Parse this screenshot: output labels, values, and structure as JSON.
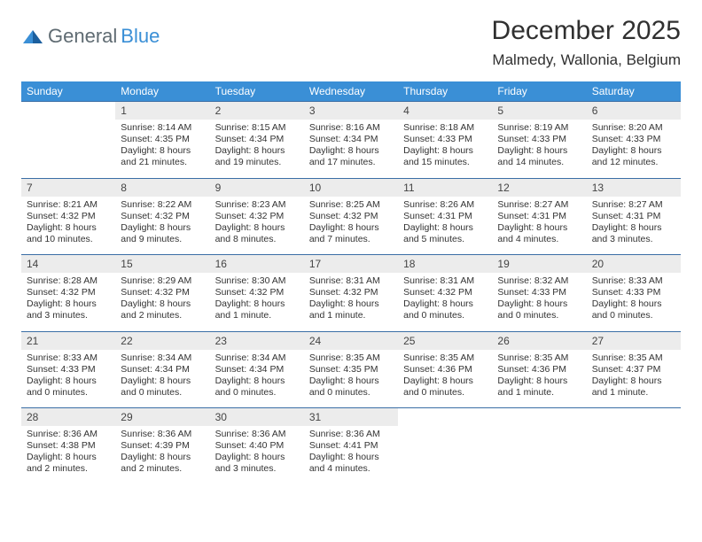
{
  "logo": {
    "word1": "General",
    "word2": "Blue"
  },
  "title": "December 2025",
  "location": "Malmedy, Wallonia, Belgium",
  "colors": {
    "header_bg": "#3a8fd6",
    "daynum_bg": "#ececec",
    "row_border": "#3a6ea5",
    "text": "#333333"
  },
  "weekdays": [
    "Sunday",
    "Monday",
    "Tuesday",
    "Wednesday",
    "Thursday",
    "Friday",
    "Saturday"
  ],
  "weeks": [
    {
      "nums": [
        "",
        "1",
        "2",
        "3",
        "4",
        "5",
        "6"
      ],
      "cells": [
        null,
        {
          "sunrise": "Sunrise: 8:14 AM",
          "sunset": "Sunset: 4:35 PM",
          "d1": "Daylight: 8 hours",
          "d2": "and 21 minutes."
        },
        {
          "sunrise": "Sunrise: 8:15 AM",
          "sunset": "Sunset: 4:34 PM",
          "d1": "Daylight: 8 hours",
          "d2": "and 19 minutes."
        },
        {
          "sunrise": "Sunrise: 8:16 AM",
          "sunset": "Sunset: 4:34 PM",
          "d1": "Daylight: 8 hours",
          "d2": "and 17 minutes."
        },
        {
          "sunrise": "Sunrise: 8:18 AM",
          "sunset": "Sunset: 4:33 PM",
          "d1": "Daylight: 8 hours",
          "d2": "and 15 minutes."
        },
        {
          "sunrise": "Sunrise: 8:19 AM",
          "sunset": "Sunset: 4:33 PM",
          "d1": "Daylight: 8 hours",
          "d2": "and 14 minutes."
        },
        {
          "sunrise": "Sunrise: 8:20 AM",
          "sunset": "Sunset: 4:33 PM",
          "d1": "Daylight: 8 hours",
          "d2": "and 12 minutes."
        }
      ]
    },
    {
      "nums": [
        "7",
        "8",
        "9",
        "10",
        "11",
        "12",
        "13"
      ],
      "cells": [
        {
          "sunrise": "Sunrise: 8:21 AM",
          "sunset": "Sunset: 4:32 PM",
          "d1": "Daylight: 8 hours",
          "d2": "and 10 minutes."
        },
        {
          "sunrise": "Sunrise: 8:22 AM",
          "sunset": "Sunset: 4:32 PM",
          "d1": "Daylight: 8 hours",
          "d2": "and 9 minutes."
        },
        {
          "sunrise": "Sunrise: 8:23 AM",
          "sunset": "Sunset: 4:32 PM",
          "d1": "Daylight: 8 hours",
          "d2": "and 8 minutes."
        },
        {
          "sunrise": "Sunrise: 8:25 AM",
          "sunset": "Sunset: 4:32 PM",
          "d1": "Daylight: 8 hours",
          "d2": "and 7 minutes."
        },
        {
          "sunrise": "Sunrise: 8:26 AM",
          "sunset": "Sunset: 4:31 PM",
          "d1": "Daylight: 8 hours",
          "d2": "and 5 minutes."
        },
        {
          "sunrise": "Sunrise: 8:27 AM",
          "sunset": "Sunset: 4:31 PM",
          "d1": "Daylight: 8 hours",
          "d2": "and 4 minutes."
        },
        {
          "sunrise": "Sunrise: 8:27 AM",
          "sunset": "Sunset: 4:31 PM",
          "d1": "Daylight: 8 hours",
          "d2": "and 3 minutes."
        }
      ]
    },
    {
      "nums": [
        "14",
        "15",
        "16",
        "17",
        "18",
        "19",
        "20"
      ],
      "cells": [
        {
          "sunrise": "Sunrise: 8:28 AM",
          "sunset": "Sunset: 4:32 PM",
          "d1": "Daylight: 8 hours",
          "d2": "and 3 minutes."
        },
        {
          "sunrise": "Sunrise: 8:29 AM",
          "sunset": "Sunset: 4:32 PM",
          "d1": "Daylight: 8 hours",
          "d2": "and 2 minutes."
        },
        {
          "sunrise": "Sunrise: 8:30 AM",
          "sunset": "Sunset: 4:32 PM",
          "d1": "Daylight: 8 hours",
          "d2": "and 1 minute."
        },
        {
          "sunrise": "Sunrise: 8:31 AM",
          "sunset": "Sunset: 4:32 PM",
          "d1": "Daylight: 8 hours",
          "d2": "and 1 minute."
        },
        {
          "sunrise": "Sunrise: 8:31 AM",
          "sunset": "Sunset: 4:32 PM",
          "d1": "Daylight: 8 hours",
          "d2": "and 0 minutes."
        },
        {
          "sunrise": "Sunrise: 8:32 AM",
          "sunset": "Sunset: 4:33 PM",
          "d1": "Daylight: 8 hours",
          "d2": "and 0 minutes."
        },
        {
          "sunrise": "Sunrise: 8:33 AM",
          "sunset": "Sunset: 4:33 PM",
          "d1": "Daylight: 8 hours",
          "d2": "and 0 minutes."
        }
      ]
    },
    {
      "nums": [
        "21",
        "22",
        "23",
        "24",
        "25",
        "26",
        "27"
      ],
      "cells": [
        {
          "sunrise": "Sunrise: 8:33 AM",
          "sunset": "Sunset: 4:33 PM",
          "d1": "Daylight: 8 hours",
          "d2": "and 0 minutes."
        },
        {
          "sunrise": "Sunrise: 8:34 AM",
          "sunset": "Sunset: 4:34 PM",
          "d1": "Daylight: 8 hours",
          "d2": "and 0 minutes."
        },
        {
          "sunrise": "Sunrise: 8:34 AM",
          "sunset": "Sunset: 4:34 PM",
          "d1": "Daylight: 8 hours",
          "d2": "and 0 minutes."
        },
        {
          "sunrise": "Sunrise: 8:35 AM",
          "sunset": "Sunset: 4:35 PM",
          "d1": "Daylight: 8 hours",
          "d2": "and 0 minutes."
        },
        {
          "sunrise": "Sunrise: 8:35 AM",
          "sunset": "Sunset: 4:36 PM",
          "d1": "Daylight: 8 hours",
          "d2": "and 0 minutes."
        },
        {
          "sunrise": "Sunrise: 8:35 AM",
          "sunset": "Sunset: 4:36 PM",
          "d1": "Daylight: 8 hours",
          "d2": "and 1 minute."
        },
        {
          "sunrise": "Sunrise: 8:35 AM",
          "sunset": "Sunset: 4:37 PM",
          "d1": "Daylight: 8 hours",
          "d2": "and 1 minute."
        }
      ]
    },
    {
      "nums": [
        "28",
        "29",
        "30",
        "31",
        "",
        "",
        ""
      ],
      "cells": [
        {
          "sunrise": "Sunrise: 8:36 AM",
          "sunset": "Sunset: 4:38 PM",
          "d1": "Daylight: 8 hours",
          "d2": "and 2 minutes."
        },
        {
          "sunrise": "Sunrise: 8:36 AM",
          "sunset": "Sunset: 4:39 PM",
          "d1": "Daylight: 8 hours",
          "d2": "and 2 minutes."
        },
        {
          "sunrise": "Sunrise: 8:36 AM",
          "sunset": "Sunset: 4:40 PM",
          "d1": "Daylight: 8 hours",
          "d2": "and 3 minutes."
        },
        {
          "sunrise": "Sunrise: 8:36 AM",
          "sunset": "Sunset: 4:41 PM",
          "d1": "Daylight: 8 hours",
          "d2": "and 4 minutes."
        },
        null,
        null,
        null
      ]
    }
  ]
}
